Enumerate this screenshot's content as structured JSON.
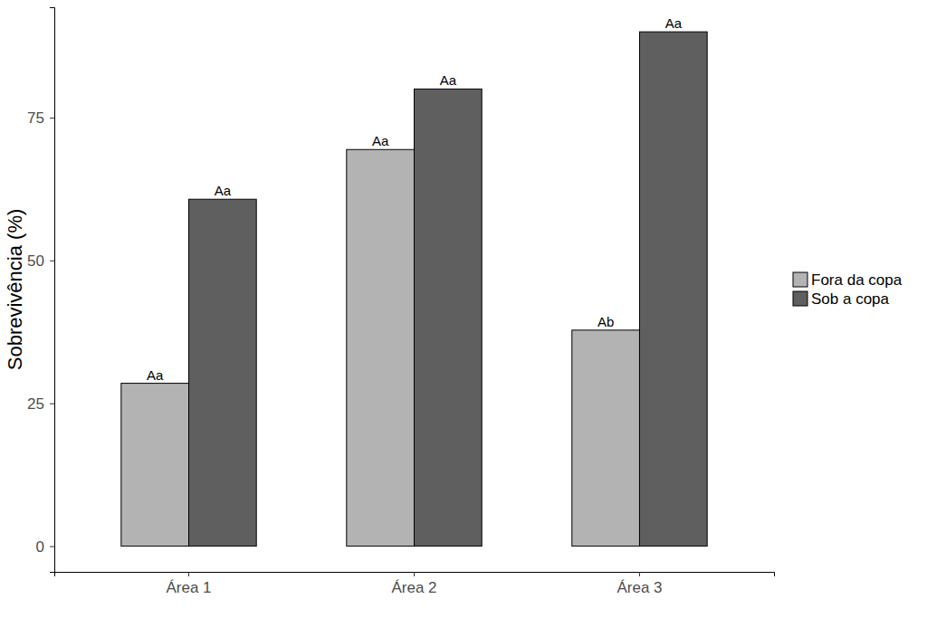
{
  "chart_data": {
    "type": "bar",
    "y_label": "Sobrevivência (%)",
    "categories": [
      "Área 1",
      "Área 2",
      "Área 3"
    ],
    "series": [
      {
        "name": "Fora da copa",
        "color": "#b3b3b3",
        "values": [
          28.5,
          69.4,
          37.8
        ],
        "annotations": [
          "Aa",
          "Aa",
          "Ab"
        ]
      },
      {
        "name": "Sob a copa",
        "color": "#5f5f5f",
        "values": [
          60.7,
          80.0,
          90.0
        ],
        "annotations": [
          "Aa",
          "Aa",
          "Aa"
        ]
      }
    ],
    "ylim": [
      -4.5,
      94.3
    ],
    "yticks": [
      0,
      25,
      50,
      75
    ],
    "grid": false,
    "legend": "right"
  }
}
